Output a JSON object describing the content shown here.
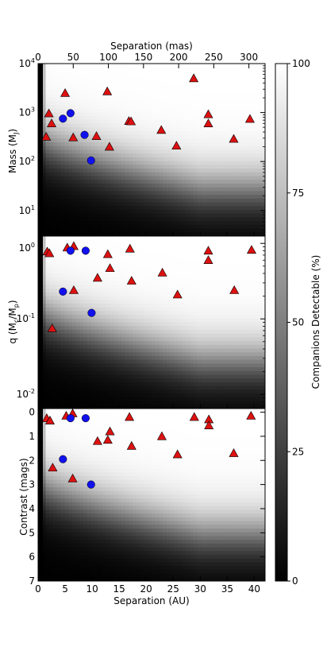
{
  "chart_data": {
    "type": "scatter",
    "background": "heatmap",
    "colorbar": {
      "label": "Companions Detectable (%)",
      "ticks": [
        "0",
        "25",
        "50",
        "75",
        "100"
      ],
      "range": [
        0,
        100
      ],
      "colors": [
        "#000000",
        "#ffffff"
      ]
    },
    "x_bottom": {
      "label": "Separation (AU)",
      "ticks": [
        "0",
        "5",
        "10",
        "15",
        "20",
        "25",
        "30",
        "35",
        "40"
      ],
      "range": [
        0,
        42
      ]
    },
    "x_top": {
      "label": "Separation (mas)",
      "ticks": [
        "0",
        "50",
        "100",
        "150",
        "200",
        "250",
        "300"
      ],
      "range": [
        0,
        323
      ]
    },
    "marker_colors": {
      "triangle": "#dd1111",
      "circle": "#1111ee"
    },
    "panels": [
      {
        "ylabel": "Mass (M",
        "ylabel_sub": "J",
        "ylabel_end": ")",
        "yscale": "log",
        "ylim": [
          3,
          10000
        ],
        "yticks": [
          {
            "base": "10",
            "exp": "1",
            "value": 10
          },
          {
            "base": "10",
            "exp": "2",
            "value": 100
          },
          {
            "base": "10",
            "exp": "3",
            "value": 1000
          },
          {
            "base": "10",
            "exp": "4",
            "value": 10000
          }
        ],
        "triangles": [
          {
            "x": 1.5,
            "y": 320
          },
          {
            "x": 2.0,
            "y": 960
          },
          {
            "x": 2.5,
            "y": 600
          },
          {
            "x": 5.0,
            "y": 2500
          },
          {
            "x": 6.5,
            "y": 310
          },
          {
            "x": 10.8,
            "y": 330
          },
          {
            "x": 12.8,
            "y": 2700
          },
          {
            "x": 13.2,
            "y": 200
          },
          {
            "x": 16.8,
            "y": 670
          },
          {
            "x": 17.2,
            "y": 660
          },
          {
            "x": 22.8,
            "y": 440
          },
          {
            "x": 25.6,
            "y": 210
          },
          {
            "x": 28.8,
            "y": 5000
          },
          {
            "x": 31.5,
            "y": 920
          },
          {
            "x": 31.5,
            "y": 600
          },
          {
            "x": 36.2,
            "y": 290
          },
          {
            "x": 39.2,
            "y": 740
          }
        ],
        "circles": [
          {
            "x": 4.6,
            "y": 750
          },
          {
            "x": 6.0,
            "y": 970
          },
          {
            "x": 8.6,
            "y": 350
          },
          {
            "x": 9.8,
            "y": 105
          }
        ]
      },
      {
        "ylabel": "q (M",
        "ylabel_sub": "c",
        "ylabel_mid": "/M",
        "ylabel_sub2": "p",
        "ylabel_end": ")",
        "yscale": "log",
        "ylim": [
          0.0065,
          1.25
        ],
        "yticks": [
          {
            "base": "10",
            "exp": "-2",
            "value": 0.01
          },
          {
            "base": "10",
            "exp": "-1",
            "value": 0.1
          },
          {
            "base": "10",
            "exp": "0",
            "value": 1
          }
        ],
        "triangles": [
          {
            "x": 1.7,
            "y": 0.78
          },
          {
            "x": 2.1,
            "y": 0.74
          },
          {
            "x": 2.6,
            "y": 0.075
          },
          {
            "x": 5.4,
            "y": 0.88
          },
          {
            "x": 6.6,
            "y": 0.92
          },
          {
            "x": 6.6,
            "y": 0.24
          },
          {
            "x": 11.0,
            "y": 0.35
          },
          {
            "x": 12.9,
            "y": 0.72
          },
          {
            "x": 13.3,
            "y": 0.47
          },
          {
            "x": 17.0,
            "y": 0.85
          },
          {
            "x": 17.3,
            "y": 0.32
          },
          {
            "x": 23.0,
            "y": 0.41
          },
          {
            "x": 25.8,
            "y": 0.21
          },
          {
            "x": 31.5,
            "y": 0.8
          },
          {
            "x": 31.5,
            "y": 0.6
          },
          {
            "x": 36.3,
            "y": 0.24
          },
          {
            "x": 39.5,
            "y": 0.82
          }
        ],
        "circles": [
          {
            "x": 4.6,
            "y": 0.23
          },
          {
            "x": 6.0,
            "y": 0.8
          },
          {
            "x": 8.8,
            "y": 0.8
          },
          {
            "x": 9.9,
            "y": 0.12
          }
        ]
      },
      {
        "ylabel": "Contrast (mags)",
        "yscale": "linear",
        "ylim": [
          7,
          -0.15
        ],
        "inverted": true,
        "yticks": [
          {
            "label": "0",
            "value": 0
          },
          {
            "label": "1",
            "value": 1
          },
          {
            "label": "2",
            "value": 2
          },
          {
            "label": "3",
            "value": 3
          },
          {
            "label": "4",
            "value": 4
          },
          {
            "label": "5",
            "value": 5
          },
          {
            "label": "6",
            "value": 6
          },
          {
            "label": "7",
            "value": 7
          }
        ],
        "triangles": [
          {
            "x": 1.6,
            "y": 0.25
          },
          {
            "x": 2.2,
            "y": 0.35
          },
          {
            "x": 2.7,
            "y": 2.3
          },
          {
            "x": 5.2,
            "y": 0.15
          },
          {
            "x": 6.4,
            "y": 0.05
          },
          {
            "x": 6.4,
            "y": 2.75
          },
          {
            "x": 11.0,
            "y": 1.2
          },
          {
            "x": 12.9,
            "y": 1.15
          },
          {
            "x": 13.3,
            "y": 0.8
          },
          {
            "x": 16.9,
            "y": 0.2
          },
          {
            "x": 17.3,
            "y": 1.4
          },
          {
            "x": 22.9,
            "y": 1.0
          },
          {
            "x": 25.8,
            "y": 1.75
          },
          {
            "x": 28.9,
            "y": 0.2
          },
          {
            "x": 31.6,
            "y": 0.3
          },
          {
            "x": 31.6,
            "y": 0.55
          },
          {
            "x": 36.2,
            "y": 1.7
          },
          {
            "x": 39.4,
            "y": 0.15
          }
        ],
        "circles": [
          {
            "x": 4.6,
            "y": 1.95
          },
          {
            "x": 6.0,
            "y": 0.25
          },
          {
            "x": 8.8,
            "y": 0.25
          },
          {
            "x": 9.8,
            "y": 3.0
          }
        ]
      }
    ]
  }
}
